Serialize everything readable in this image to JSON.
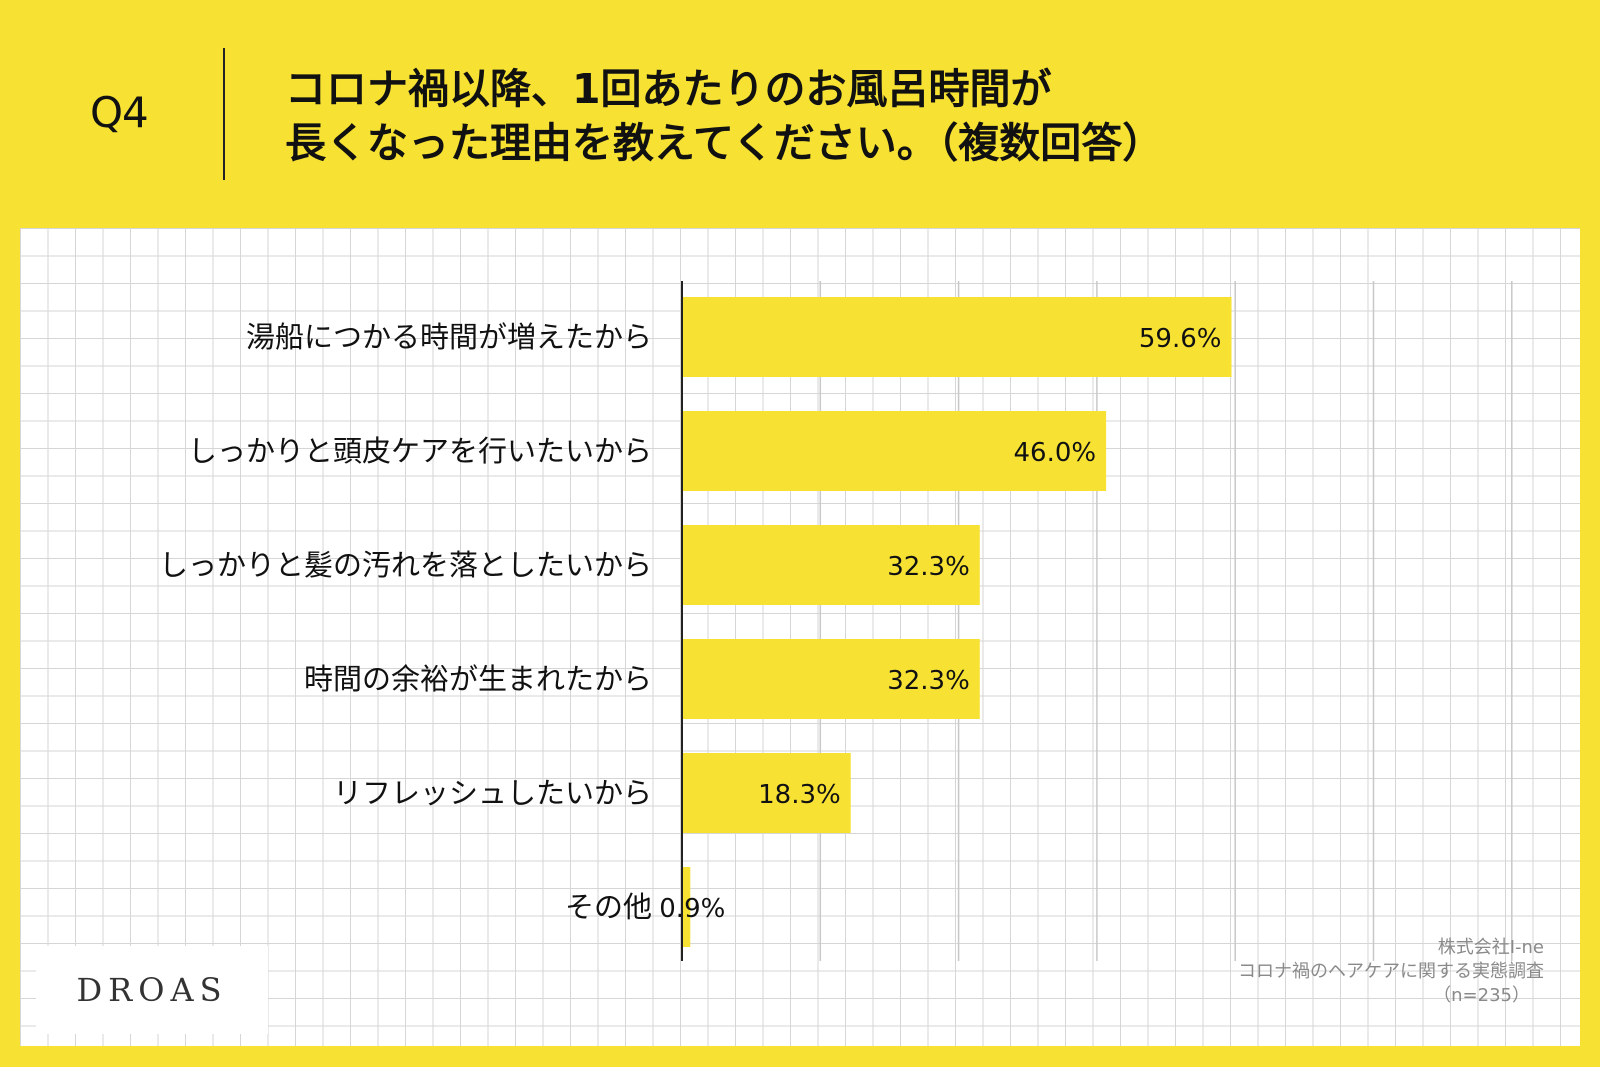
{
  "question": {
    "label": "Q4",
    "title_line1": "コロナ禍以降、1回あたりのお風呂時間が",
    "title_line2": "長くなった理由を教えてください。（複数回答）"
  },
  "colors": {
    "background": "#f7e234",
    "bar": "#f7e234",
    "panel": "#ffffff",
    "gridline": "#c8c8c8",
    "axis": "#222222"
  },
  "chart_data": {
    "type": "bar",
    "orientation": "horizontal",
    "title": "コロナ禍以降、1回あたりのお風呂時間が長くなった理由を教えてください。（複数回答）",
    "categories": [
      "湯船につかる時間が増えたから",
      "しっかりと頭皮ケアを行いたいから",
      "しっかりと髪の汚れを落としたいから",
      "時間の余裕が生まれたから",
      "リフレッシュしたいから",
      "その他"
    ],
    "values": [
      59.6,
      46.0,
      32.3,
      32.3,
      18.3,
      0.9
    ],
    "value_labels": [
      "59.6%",
      "46.0%",
      "32.3%",
      "32.3%",
      "18.3%",
      "0.9%"
    ],
    "unit": "%",
    "xlim": [
      0,
      100
    ],
    "x_gridline_step": 15,
    "grid": true,
    "legend": "none"
  },
  "logo": {
    "text": "DROAS"
  },
  "source": {
    "company": "株式会社I-ne",
    "survey": "コロナ禍のヘアケアに関する実態調査",
    "sample": "（n=235）"
  }
}
